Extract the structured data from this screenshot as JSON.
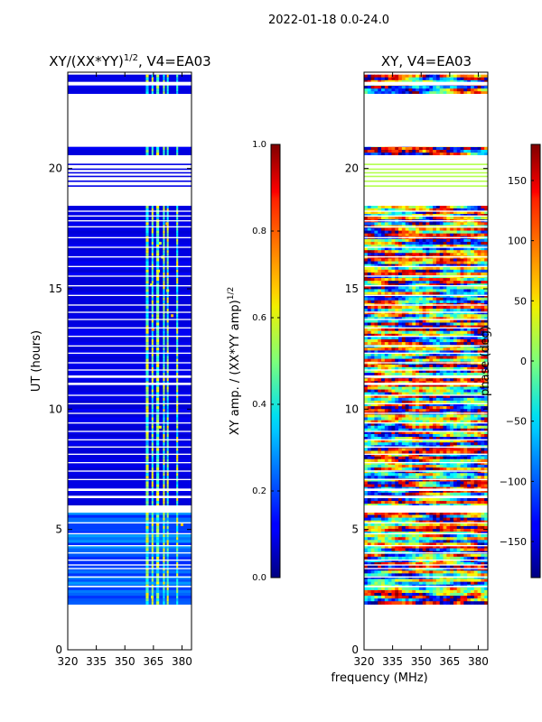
{
  "figure": {
    "suptitle": "2022-01-18 0.0-24.0",
    "xlabel": "frequency (MHz)"
  },
  "chart_data": [
    {
      "type": "heatmap",
      "title_main": "XY/(XX*YY)",
      "title_sup": "1/2",
      "title_tail": ", V4=EA03",
      "ylabel": "UT (hours)",
      "xlim": [
        320,
        385
      ],
      "ylim": [
        0,
        24
      ],
      "xticks": [
        "320",
        "335",
        "350",
        "365",
        "380"
      ],
      "yticks": [
        "0",
        "5",
        "10",
        "15",
        "20"
      ],
      "data_hours": [
        1.9,
        23.9
      ],
      "colorbar": {
        "label_main": "XY amp. / (XX*YY amp)",
        "label_sup": "1/2",
        "range": [
          0.0,
          1.0
        ],
        "ticks": [
          "0.0",
          "0.2",
          "0.4",
          "0.6",
          "0.8",
          "1.0"
        ]
      }
    },
    {
      "type": "heatmap",
      "title": "XY, V4=EA03",
      "xlim": [
        320,
        385
      ],
      "ylim": [
        0,
        24
      ],
      "xticks": [
        "320",
        "335",
        "350",
        "365",
        "380"
      ],
      "yticks": [
        "0",
        "5",
        "10",
        "15",
        "20"
      ],
      "data_hours": [
        1.9,
        23.9
      ],
      "colorbar": {
        "label": "phase (deg)",
        "range": [
          -180,
          180
        ],
        "ticks": [
          "150",
          "100",
          "50",
          "0",
          "−50",
          "−100",
          "−150"
        ]
      }
    }
  ],
  "flagged_gaps_hours": [
    [
      2.6,
      2.66
    ],
    [
      3.0,
      3.05
    ],
    [
      3.35,
      3.4
    ],
    [
      3.5,
      3.55
    ],
    [
      3.7,
      3.75
    ],
    [
      4.0,
      4.05
    ],
    [
      4.3,
      4.35
    ],
    [
      4.8,
      4.85
    ],
    [
      5.25,
      5.3
    ],
    [
      5.7,
      6.0
    ],
    [
      6.3,
      6.4
    ],
    [
      6.6,
      6.7
    ],
    [
      7.05,
      7.1
    ],
    [
      7.4,
      7.45
    ],
    [
      7.75,
      7.8
    ],
    [
      8.1,
      8.15
    ],
    [
      8.4,
      8.45
    ],
    [
      8.7,
      8.75
    ],
    [
      9.05,
      9.1
    ],
    [
      9.4,
      9.45
    ],
    [
      9.8,
      9.85
    ],
    [
      10.2,
      10.25
    ],
    [
      10.55,
      10.6
    ],
    [
      11.0,
      11.1
    ],
    [
      11.3,
      11.4
    ],
    [
      11.6,
      11.65
    ],
    [
      11.9,
      11.95
    ],
    [
      12.3,
      12.35
    ],
    [
      12.6,
      12.65
    ],
    [
      13.0,
      13.05
    ],
    [
      13.35,
      13.4
    ],
    [
      13.7,
      13.75
    ],
    [
      14.0,
      14.05
    ],
    [
      14.3,
      14.35
    ],
    [
      14.7,
      14.75
    ],
    [
      15.1,
      15.15
    ],
    [
      15.5,
      15.55
    ],
    [
      15.9,
      15.95
    ],
    [
      16.3,
      16.35
    ],
    [
      16.7,
      16.75
    ],
    [
      17.1,
      17.15
    ],
    [
      17.55,
      17.6
    ],
    [
      17.8,
      17.85
    ],
    [
      18.0,
      18.05
    ],
    [
      18.2,
      18.25
    ],
    [
      18.45,
      20.55
    ],
    [
      19.5,
      20.4
    ],
    [
      20.9,
      23.1
    ],
    [
      23.45,
      23.6
    ]
  ],
  "band_features_mhz": [
    [
      361,
      362.5
    ],
    [
      364,
      365
    ],
    [
      366.5,
      368
    ],
    [
      370,
      371
    ],
    [
      372,
      373
    ],
    [
      377,
      378
    ]
  ],
  "phase_field": {
    "stripe_rows": 190,
    "freq_cells": 36
  }
}
